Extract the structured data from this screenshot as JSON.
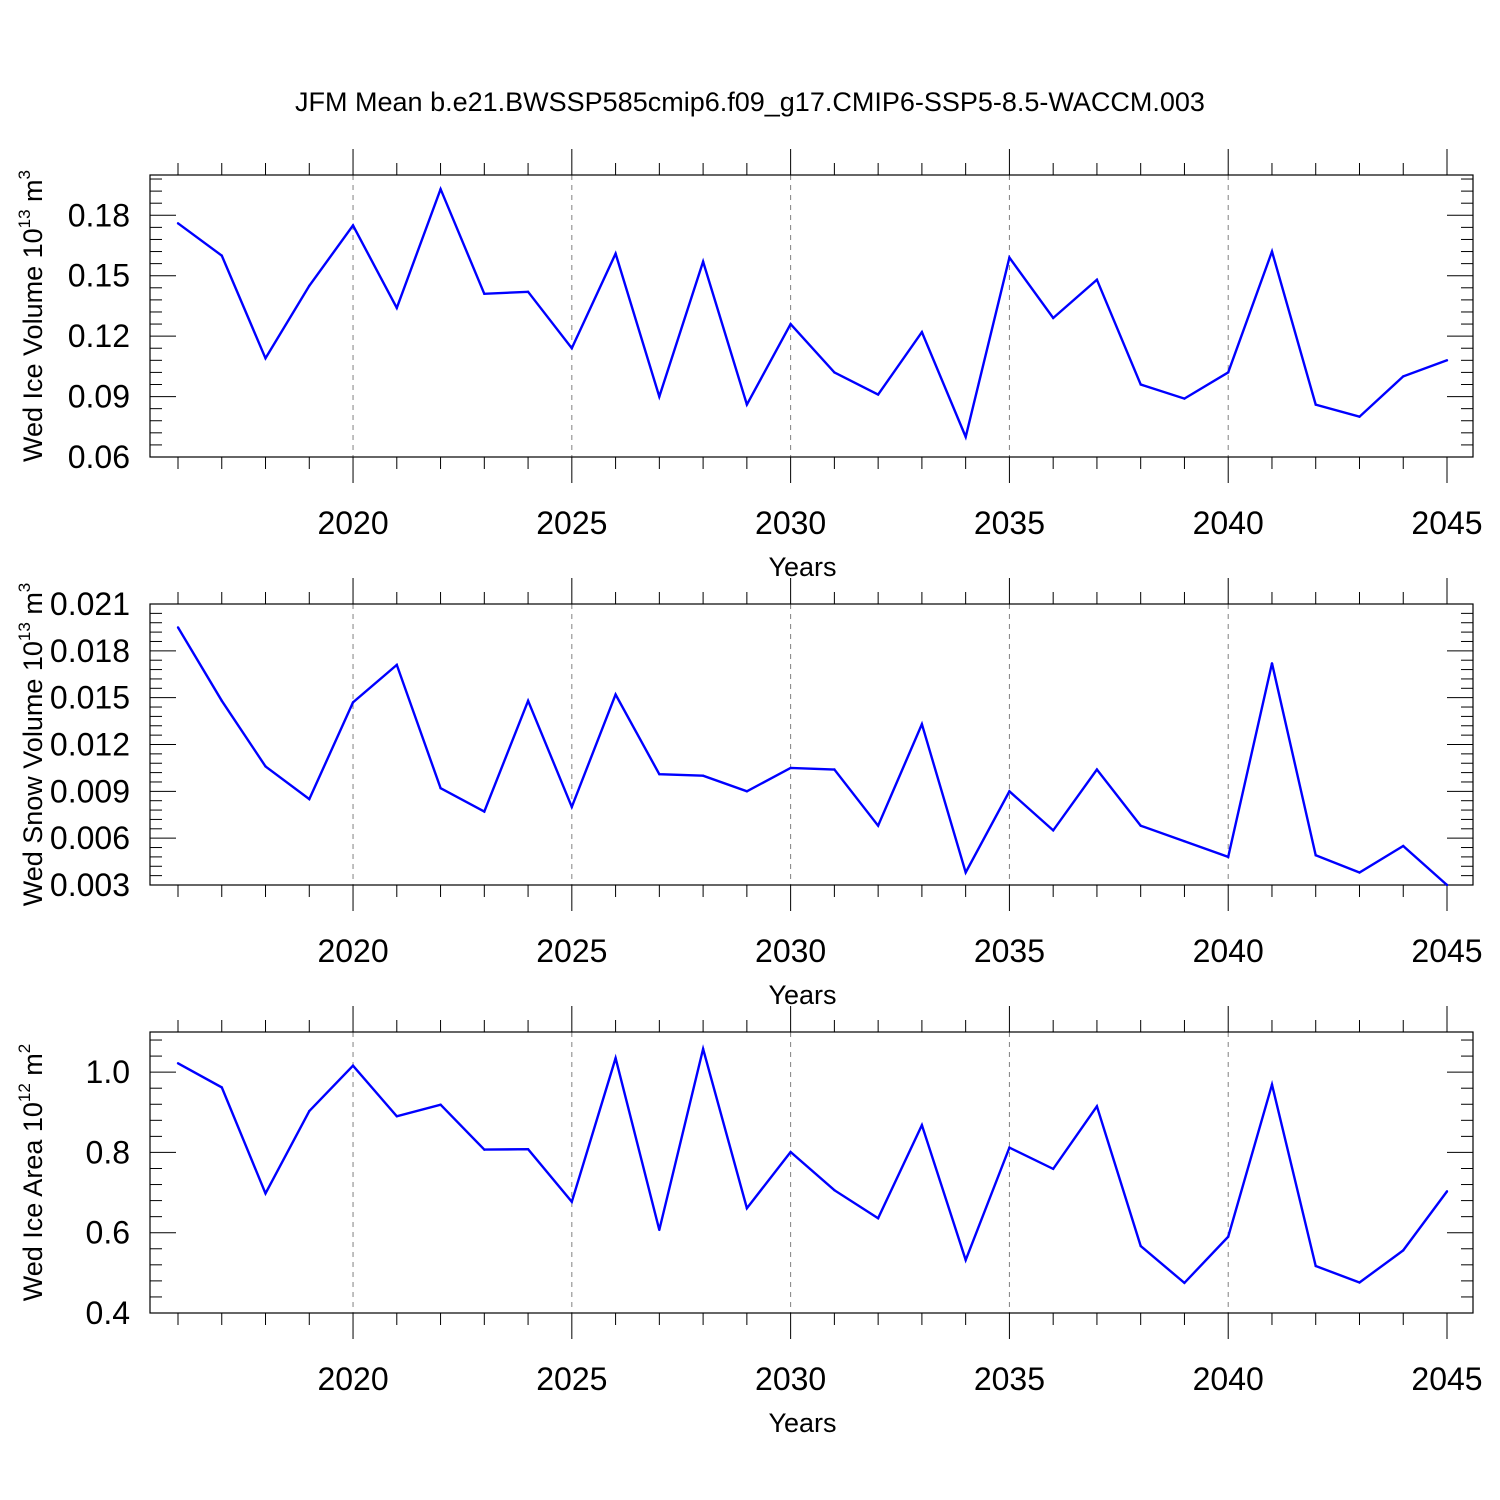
{
  "title": "JFM Mean b.e21.BWSSP585cmip6.f09_g17.CMIP6-SSP5-8.5-WACCM.003",
  "colors": {
    "line": "#0000ff",
    "axis": "#000000",
    "grid": "#808080"
  },
  "chart_data": [
    {
      "type": "line",
      "xlabel": "Years",
      "ylabel": {
        "main": "Wed Ice Volume 10",
        "exp": "13",
        "unit": " m",
        "unit_exp": "3"
      },
      "xlim": [
        2016,
        2045
      ],
      "ylim": [
        0.06,
        0.2
      ],
      "x_ticks": [
        "2020",
        "2025",
        "2030",
        "2035",
        "2040",
        "2045"
      ],
      "y_ticks": [
        "0.06",
        "0.09",
        "0.12",
        "0.15",
        "0.18"
      ],
      "grid": "vertical dashed at major x ticks",
      "x": [
        2016,
        2017,
        2018,
        2019,
        2020,
        2021,
        2022,
        2023,
        2024,
        2025,
        2026,
        2027,
        2028,
        2029,
        2030,
        2031,
        2032,
        2033,
        2034,
        2035,
        2036,
        2037,
        2038,
        2039,
        2040,
        2041,
        2042,
        2043,
        2044,
        2045
      ],
      "values": [
        0.176,
        0.16,
        0.109,
        0.145,
        0.175,
        0.134,
        0.193,
        0.141,
        0.142,
        0.114,
        0.161,
        0.09,
        0.157,
        0.086,
        0.126,
        0.102,
        0.091,
        0.122,
        0.07,
        0.159,
        0.129,
        0.148,
        0.096,
        0.089,
        0.102,
        0.162,
        0.086,
        0.08,
        0.1,
        0.108
      ]
    },
    {
      "type": "line",
      "xlabel": "Years",
      "ylabel": {
        "main": "Wed Snow Volume 10",
        "exp": "13",
        "unit": " m",
        "unit_exp": "3"
      },
      "xlim": [
        2016,
        2045
      ],
      "ylim": [
        0.003,
        0.021
      ],
      "x_ticks": [
        "2020",
        "2025",
        "2030",
        "2035",
        "2040",
        "2045"
      ],
      "y_ticks": [
        "0.003",
        "0.006",
        "0.009",
        "0.012",
        "0.015",
        "0.018",
        "0.021"
      ],
      "grid": "vertical dashed at major x ticks",
      "x": [
        2016,
        2017,
        2018,
        2019,
        2020,
        2021,
        2022,
        2023,
        2024,
        2025,
        2026,
        2027,
        2028,
        2029,
        2030,
        2031,
        2032,
        2033,
        2034,
        2035,
        2036,
        2037,
        2038,
        2039,
        2040,
        2041,
        2042,
        2043,
        2044,
        2045
      ],
      "values": [
        0.0195,
        0.0148,
        0.0106,
        0.0085,
        0.0147,
        0.0171,
        0.0092,
        0.0077,
        0.0148,
        0.008,
        0.0152,
        0.0101,
        0.01,
        0.009,
        0.0105,
        0.0104,
        0.0068,
        0.0133,
        0.0038,
        0.009,
        0.0065,
        0.0104,
        0.0068,
        0.0058,
        0.0048,
        0.0172,
        0.0049,
        0.0038,
        0.0055,
        0.003
      ]
    },
    {
      "type": "line",
      "xlabel": "Years",
      "ylabel": {
        "main": "Wed Ice Area 10",
        "exp": "12",
        "unit": " m",
        "unit_exp": "2"
      },
      "xlim": [
        2016,
        2045
      ],
      "ylim": [
        0.4,
        1.1
      ],
      "x_ticks": [
        "2020",
        "2025",
        "2030",
        "2035",
        "2040",
        "2045"
      ],
      "y_ticks": [
        "0.4",
        "0.6",
        "0.8",
        "1.0"
      ],
      "grid": "vertical dashed at major x ticks",
      "x": [
        2016,
        2017,
        2018,
        2019,
        2020,
        2021,
        2022,
        2023,
        2024,
        2025,
        2026,
        2027,
        2028,
        2029,
        2030,
        2031,
        2032,
        2033,
        2034,
        2035,
        2036,
        2037,
        2038,
        2039,
        2040,
        2041,
        2042,
        2043,
        2044,
        2045
      ],
      "values": [
        1.022,
        0.962,
        0.698,
        0.903,
        1.016,
        0.89,
        0.919,
        0.807,
        0.808,
        0.677,
        1.035,
        0.607,
        1.058,
        0.661,
        0.801,
        0.706,
        0.636,
        0.868,
        0.532,
        0.812,
        0.759,
        0.915,
        0.567,
        0.475,
        0.59,
        0.969,
        0.517,
        0.476,
        0.556,
        0.703
      ]
    }
  ]
}
